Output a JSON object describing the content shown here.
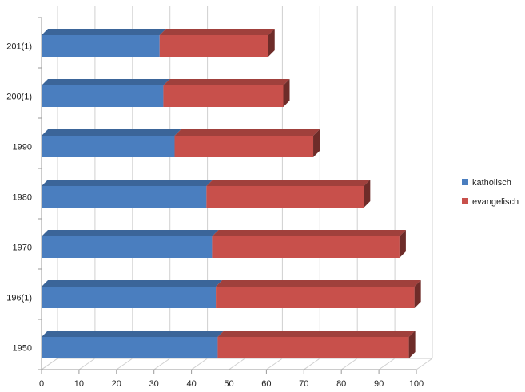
{
  "chart_data": {
    "type": "bar",
    "orientation": "horizontal",
    "stacked": true,
    "style": "3d",
    "categories": [
      "201(1)",
      "200(1)",
      "1990",
      "1980",
      "1970",
      "196(1)",
      "1950"
    ],
    "series": [
      {
        "name": "katholisch",
        "color": "#4a7ebf",
        "values": [
          31.5,
          32.5,
          35.5,
          44,
          45.5,
          46.5,
          47
        ]
      },
      {
        "name": "evangelisch",
        "color": "#c8504b",
        "values": [
          29,
          32,
          37,
          42,
          50,
          53,
          51
        ]
      }
    ],
    "xlim": [
      0,
      100
    ],
    "xticks": [
      0,
      10,
      20,
      30,
      40,
      50,
      60,
      70,
      80,
      90,
      100
    ],
    "grid": true,
    "legend_position": "right"
  }
}
